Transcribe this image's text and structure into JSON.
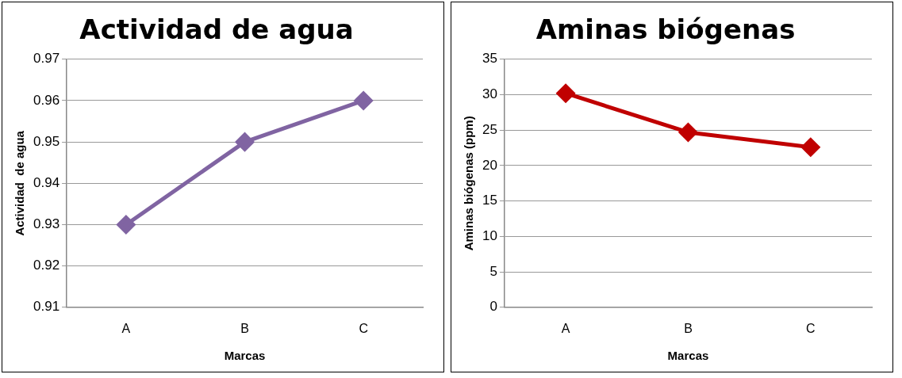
{
  "chart_data": [
    {
      "type": "line",
      "title": "Actividad de agua",
      "xlabel": "Marcas",
      "ylabel": "Actividad  de agua",
      "categories": [
        "A",
        "B",
        "C"
      ],
      "series": [
        {
          "color": "#8064a2",
          "values": [
            0.93,
            0.95,
            0.96
          ]
        }
      ],
      "ylim": [
        0.91,
        0.97
      ],
      "yticks": [
        0.91,
        0.92,
        0.93,
        0.94,
        0.95,
        0.96,
        0.97
      ],
      "grid": "y",
      "legend": false,
      "marker": "diamond",
      "line_style": "solid"
    },
    {
      "type": "line",
      "title": "Aminas biógenas",
      "xlabel": "Marcas",
      "ylabel": "Aminas biógenas (ppm)",
      "categories": [
        "A",
        "B",
        "C"
      ],
      "series": [
        {
          "color": "#c00000",
          "values": [
            30.2,
            24.7,
            22.6
          ]
        }
      ],
      "ylim": [
        0,
        35
      ],
      "yticks": [
        0,
        5,
        10,
        15,
        20,
        25,
        30,
        35
      ],
      "grid": "y",
      "legend": false,
      "marker": "diamond",
      "line_style": "solid"
    }
  ]
}
